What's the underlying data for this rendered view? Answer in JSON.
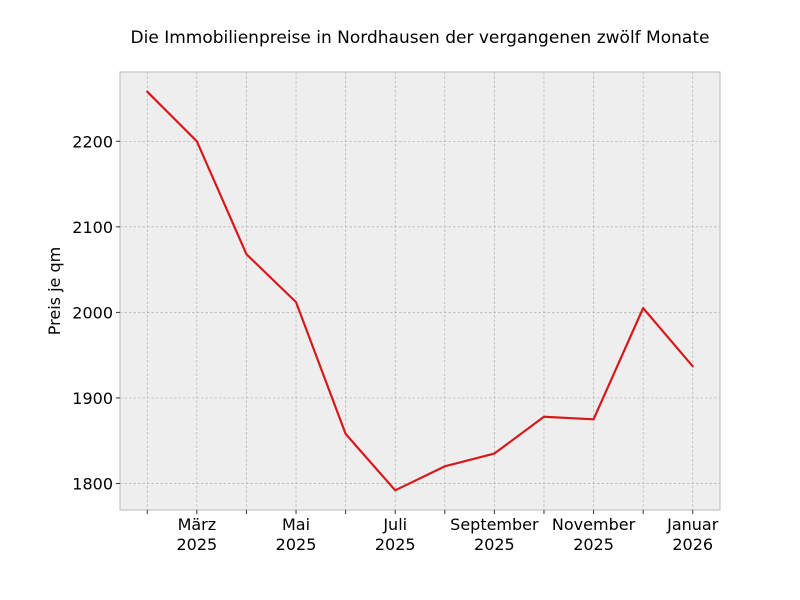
{
  "chart_data": {
    "type": "line",
    "title": "Die Immobilienpreise in Nordhausen der vergangenen zwölf Monate",
    "xlabel": "",
    "ylabel": "Preis je qm",
    "x": [
      "2025-02",
      "2025-03",
      "2025-04",
      "2025-05",
      "2025-06",
      "2025-07",
      "2025-08",
      "2025-09",
      "2025-10",
      "2025-11",
      "2025-12",
      "2026-01"
    ],
    "series": [
      {
        "values": [
          2258,
          2200,
          2068,
          2012,
          1858,
          1792,
          1820,
          1835,
          1878,
          1875,
          2005,
          1937
        ],
        "color": "#d7191c"
      }
    ],
    "ylim": [
      1769,
      2281
    ],
    "yticks": [
      1800,
      1900,
      2000,
      2100,
      2200
    ],
    "xtick_labels": [
      {
        "x": "2025-03",
        "line1": "März",
        "line2": "2025"
      },
      {
        "x": "2025-05",
        "line1": "Mai",
        "line2": "2025"
      },
      {
        "x": "2025-07",
        "line1": "Juli",
        "line2": "2025"
      },
      {
        "x": "2025-09",
        "line1": "September",
        "line2": "2025"
      },
      {
        "x": "2025-11",
        "line1": "November",
        "line2": "2025"
      },
      {
        "x": "2026-01",
        "line1": "Januar",
        "line2": "2026"
      }
    ],
    "grid": true,
    "legend": "none",
    "colors": {
      "plot_background": "#eeeeee",
      "grid": "#b0b0b0",
      "frame": "#bcbcbc",
      "line": "#d7191c"
    }
  }
}
